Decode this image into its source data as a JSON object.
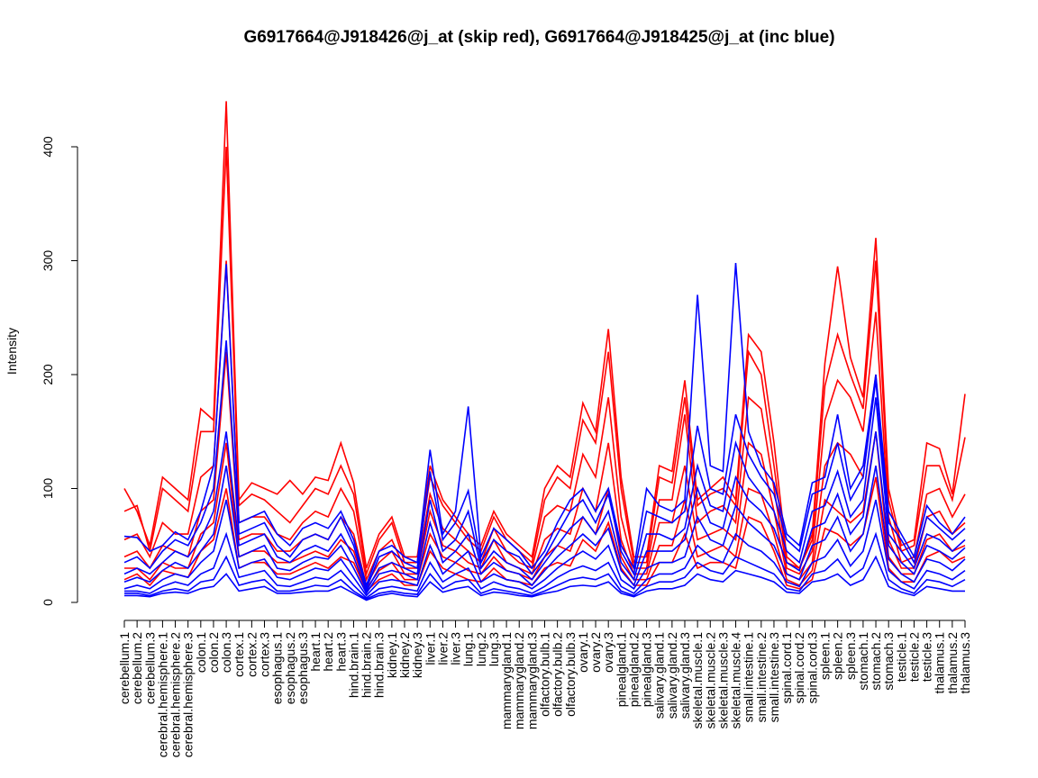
{
  "chart_data": {
    "type": "line",
    "title": "G6917664@J918426@j_at (skip red), G6917664@J918425@j_at (inc blue)",
    "xlabel": "",
    "ylabel": "Intensity",
    "ylim": [
      0,
      400
    ],
    "yticks": [
      0,
      100,
      200,
      300,
      400
    ],
    "grid": false,
    "categories": [
      "cerebellum.1",
      "cerebellum.2",
      "cerebellum.3",
      "cerebral.hemisphere.1",
      "cerebral.hemisphere.2",
      "cerebral.hemisphere.3",
      "colon.1",
      "colon.2",
      "colon.3",
      "cortex.1",
      "cortex.2",
      "cortex.3",
      "esophagus.1",
      "esophagus.2",
      "esophagus.3",
      "heart.1",
      "heart.2",
      "heart.3",
      "hind.brain.1",
      "hind.brain.2",
      "hind.brain.3",
      "kidney.1",
      "kidney.2",
      "kidney.3",
      "liver.1",
      "liver.2",
      "liver.3",
      "lung.1",
      "lung.2",
      "lung.3",
      "mammarygland.1",
      "mammarygland.2",
      "mammarygland.3",
      "olfactory.bulb.1",
      "olfactory.bulb.2",
      "olfactory.bulb.3",
      "ovary.1",
      "ovary.2",
      "ovary.3",
      "pinealgland.1",
      "pinealgland.2",
      "pinealgland.3",
      "salivary.gland.1",
      "salivary.gland.2",
      "salivary.gland.3",
      "skeletal.muscle.1",
      "skeletal.muscle.2",
      "skeletal.muscle.3",
      "skeletal.muscle.4",
      "small.intestine.1",
      "small.intestine.2",
      "small.intestine.3",
      "spinal.cord.1",
      "spinal.cord.2",
      "spinal.cord.3",
      "spleen.1",
      "spleen.2",
      "spleen.3",
      "stomach.1",
      "stomach.2",
      "stomach.3",
      "testicle.1",
      "testicle.2",
      "testicle.3",
      "thalamus.1",
      "thalamus.2",
      "thalamus.3"
    ],
    "series": [
      {
        "color": "#ff0000",
        "values": [
          100,
          80,
          50,
          110,
          100,
          90,
          170,
          160,
          440,
          90,
          105,
          100,
          95,
          107,
          95,
          110,
          107,
          140,
          105,
          30,
          60,
          75,
          40,
          40,
          120,
          90,
          75,
          60,
          50,
          80,
          60,
          50,
          40,
          100,
          120,
          110,
          175,
          150,
          240,
          110,
          40,
          40,
          120,
          115,
          195,
          90,
          100,
          110,
          90,
          235,
          220,
          140,
          40,
          30,
          60,
          210,
          295,
          215,
          180,
          320,
          100,
          50,
          55,
          140,
          135,
          95,
          183
        ]
      },
      {
        "color": "#ff0000",
        "values": [
          80,
          85,
          45,
          100,
          90,
          80,
          150,
          150,
          400,
          85,
          95,
          90,
          80,
          70,
          85,
          100,
          95,
          120,
          95,
          25,
          55,
          70,
          35,
          35,
          110,
          85,
          70,
          55,
          45,
          75,
          55,
          45,
          35,
          90,
          110,
          100,
          160,
          140,
          220,
          100,
          35,
          35,
          110,
          105,
          180,
          85,
          95,
          100,
          85,
          220,
          200,
          120,
          35,
          30,
          55,
          190,
          235,
          200,
          170,
          300,
          90,
          45,
          50,
          120,
          120,
          90,
          145
        ]
      },
      {
        "color": "#ff0000",
        "values": [
          55,
          60,
          40,
          70,
          60,
          60,
          110,
          120,
          300,
          70,
          75,
          75,
          60,
          55,
          70,
          80,
          75,
          100,
          80,
          20,
          45,
          55,
          30,
          30,
          95,
          65,
          55,
          45,
          35,
          65,
          45,
          35,
          30,
          75,
          85,
          80,
          130,
          110,
          180,
          75,
          30,
          30,
          90,
          90,
          165,
          70,
          80,
          85,
          70,
          180,
          170,
          100,
          30,
          25,
          45,
          160,
          195,
          180,
          150,
          255,
          75,
          35,
          40,
          95,
          100,
          75,
          95
        ]
      },
      {
        "color": "#ff0000",
        "values": [
          40,
          45,
          30,
          50,
          45,
          40,
          80,
          90,
          220,
          55,
          60,
          60,
          45,
          45,
          55,
          60,
          55,
          75,
          60,
          15,
          35,
          45,
          25,
          25,
          80,
          50,
          45,
          35,
          30,
          55,
          35,
          30,
          25,
          55,
          65,
          60,
          100,
          80,
          140,
          55,
          25,
          25,
          70,
          70,
          120,
          55,
          60,
          65,
          55,
          140,
          130,
          80,
          25,
          20,
          35,
          120,
          140,
          130,
          110,
          200,
          55,
          30,
          30,
          75,
          80,
          60,
          70
        ]
      },
      {
        "color": "#ff0000",
        "values": [
          30,
          30,
          20,
          35,
          30,
          30,
          60,
          70,
          140,
          40,
          45,
          45,
          35,
          35,
          40,
          45,
          40,
          55,
          45,
          12,
          28,
          35,
          20,
          20,
          60,
          40,
          35,
          28,
          25,
          40,
          28,
          25,
          20,
          40,
          50,
          45,
          75,
          60,
          100,
          40,
          20,
          20,
          50,
          50,
          90,
          40,
          45,
          50,
          40,
          100,
          95,
          60,
          20,
          15,
          28,
          90,
          80,
          70,
          80,
          150,
          40,
          25,
          25,
          55,
          60,
          45,
          50
        ]
      },
      {
        "color": "#ff0000",
        "values": [
          20,
          25,
          15,
          28,
          25,
          22,
          45,
          55,
          100,
          30,
          35,
          35,
          25,
          25,
          30,
          35,
          30,
          40,
          35,
          10,
          20,
          25,
          15,
          15,
          45,
          30,
          25,
          20,
          18,
          30,
          20,
          18,
          15,
          30,
          35,
          32,
          55,
          45,
          70,
          30,
          15,
          15,
          35,
          35,
          60,
          30,
          35,
          35,
          30,
          75,
          70,
          45,
          15,
          12,
          20,
          65,
          60,
          50,
          60,
          110,
          30,
          18,
          18,
          40,
          45,
          35,
          40
        ]
      },
      {
        "color": "#0000ff",
        "values": [
          58,
          57,
          45,
          50,
          62,
          55,
          80,
          120,
          297,
          70,
          75,
          80,
          60,
          50,
          65,
          70,
          65,
          80,
          55,
          15,
          45,
          50,
          40,
          35,
          134,
          60,
          80,
          172,
          40,
          65,
          55,
          45,
          30,
          45,
          70,
          90,
          100,
          80,
          100,
          50,
          30,
          100,
          85,
          80,
          90,
          270,
          120,
          115,
          298,
          150,
          120,
          105,
          60,
          50,
          105,
          110,
          165,
          100,
          120,
          200,
          80,
          60,
          40,
          85,
          70,
          60,
          75
        ]
      },
      {
        "color": "#0000ff",
        "values": [
          35,
          40,
          30,
          45,
          55,
          50,
          70,
          100,
          230,
          60,
          65,
          70,
          50,
          40,
          55,
          60,
          55,
          75,
          50,
          12,
          40,
          45,
          35,
          30,
          115,
          55,
          70,
          98,
          35,
          55,
          45,
          40,
          25,
          40,
          60,
          80,
          90,
          70,
          95,
          45,
          25,
          80,
          75,
          70,
          80,
          155,
          100,
          95,
          165,
          130,
          110,
          95,
          55,
          45,
          95,
          100,
          140,
          90,
          110,
          195,
          70,
          55,
          35,
          75,
          65,
          55,
          65
        ]
      },
      {
        "color": "#0000ff",
        "values": [
          25,
          30,
          25,
          35,
          45,
          40,
          55,
          80,
          150,
          50,
          55,
          60,
          40,
          35,
          45,
          50,
          45,
          60,
          40,
          10,
          30,
          35,
          30,
          25,
          90,
          45,
          55,
          80,
          30,
          45,
          35,
          30,
          20,
          35,
          50,
          65,
          75,
          60,
          80,
          35,
          20,
          60,
          60,
          55,
          65,
          120,
          85,
          80,
          140,
          110,
          95,
          80,
          45,
          35,
          80,
          85,
          115,
          75,
          90,
          180,
          60,
          45,
          30,
          60,
          55,
          45,
          55
        ]
      },
      {
        "color": "#0000ff",
        "values": [
          18,
          22,
          18,
          28,
          35,
          30,
          45,
          60,
          120,
          40,
          45,
          50,
          30,
          28,
          35,
          40,
          38,
          50,
          30,
          8,
          25,
          28,
          25,
          20,
          70,
          35,
          45,
          60,
          25,
          35,
          28,
          25,
          15,
          28,
          40,
          50,
          60,
          50,
          65,
          28,
          15,
          45,
          45,
          45,
          55,
          100,
          70,
          65,
          110,
          90,
          80,
          65,
          35,
          28,
          65,
          70,
          95,
          60,
          75,
          150,
          50,
          35,
          25,
          50,
          45,
          38,
          48
        ]
      },
      {
        "color": "#0000ff",
        "values": [
          12,
          15,
          12,
          20,
          25,
          22,
          35,
          45,
          90,
          30,
          35,
          38,
          22,
          20,
          25,
          30,
          28,
          38,
          22,
          6,
          18,
          20,
          18,
          15,
          50,
          25,
          35,
          45,
          18,
          25,
          20,
          18,
          12,
          20,
          30,
          38,
          45,
          38,
          50,
          20,
          12,
          30,
          35,
          35,
          40,
          75,
          55,
          50,
          85,
          70,
          60,
          50,
          25,
          20,
          50,
          55,
          75,
          45,
          60,
          120,
          38,
          25,
          18,
          38,
          35,
          28,
          38
        ]
      },
      {
        "color": "#0000ff",
        "values": [
          10,
          10,
          8,
          14,
          18,
          15,
          25,
          30,
          60,
          22,
          25,
          28,
          15,
          14,
          18,
          22,
          20,
          28,
          15,
          4,
          12,
          14,
          12,
          10,
          35,
          18,
          25,
          30,
          12,
          18,
          14,
          12,
          8,
          14,
          22,
          28,
          32,
          28,
          35,
          14,
          8,
          20,
          25,
          25,
          30,
          50,
          40,
          35,
          60,
          50,
          45,
          35,
          18,
          14,
          35,
          40,
          55,
          32,
          45,
          90,
          28,
          18,
          12,
          28,
          25,
          20,
          28
        ]
      },
      {
        "color": "#0000ff",
        "values": [
          8,
          8,
          6,
          10,
          12,
          10,
          18,
          20,
          40,
          15,
          18,
          20,
          10,
          10,
          12,
          15,
          14,
          20,
          10,
          3,
          8,
          10,
          8,
          7,
          25,
          12,
          18,
          20,
          8,
          12,
          10,
          8,
          6,
          10,
          15,
          20,
          22,
          20,
          25,
          10,
          6,
          14,
          18,
          18,
          22,
          35,
          28,
          25,
          40,
          35,
          30,
          25,
          12,
          10,
          25,
          28,
          38,
          22,
          30,
          60,
          20,
          12,
          8,
          20,
          18,
          14,
          20
        ]
      },
      {
        "color": "#0000ff",
        "values": [
          6,
          6,
          5,
          8,
          9,
          8,
          12,
          14,
          25,
          10,
          12,
          14,
          8,
          8,
          9,
          10,
          10,
          14,
          8,
          2,
          6,
          8,
          6,
          5,
          18,
          9,
          12,
          14,
          6,
          9,
          8,
          6,
          5,
          8,
          10,
          14,
          15,
          14,
          18,
          8,
          5,
          10,
          12,
          12,
          15,
          25,
          20,
          18,
          28,
          25,
          22,
          18,
          9,
          8,
          18,
          20,
          25,
          15,
          20,
          40,
          14,
          9,
          6,
          14,
          12,
          10,
          10
        ]
      }
    ]
  }
}
